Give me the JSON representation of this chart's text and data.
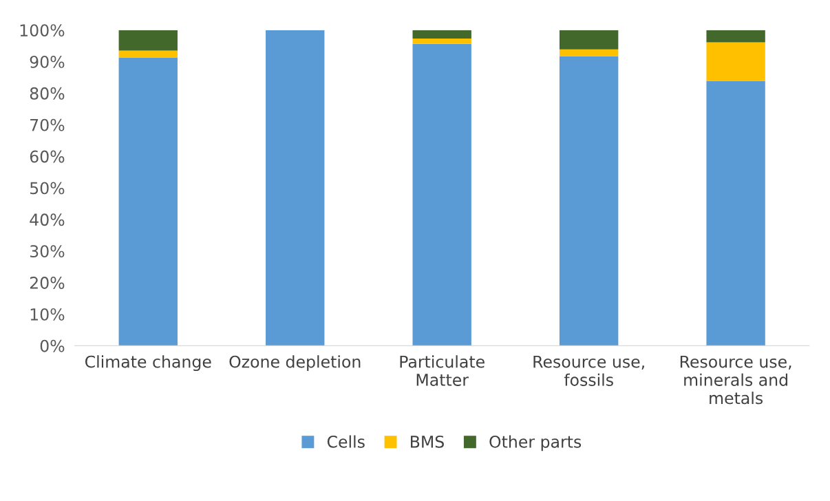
{
  "chart_data": {
    "type": "bar",
    "stacked": true,
    "categories": [
      "Climate change",
      "Ozone depletion",
      "Particulate\nMatter",
      "Resource use,\nfossils",
      "Resource use,\nminerals and\nmetals"
    ],
    "series": [
      {
        "name": "Cells",
        "color": "#5b9bd5",
        "values": [
          91.3,
          100,
          95.6,
          91.7,
          83.9
        ]
      },
      {
        "name": "BMS",
        "color": "#ffc000",
        "values": [
          2.2,
          0,
          1.7,
          2.2,
          12.2
        ]
      },
      {
        "name": "Other parts",
        "color": "#43682b",
        "values": [
          6.5,
          0,
          2.7,
          6.1,
          3.9
        ]
      }
    ],
    "ylim": [
      0,
      100
    ],
    "yticks": [
      {
        "value": 0,
        "label": "0%"
      },
      {
        "value": 10,
        "label": "10%"
      },
      {
        "value": 20,
        "label": "20%"
      },
      {
        "value": 30,
        "label": "30%"
      },
      {
        "value": 40,
        "label": "40%"
      },
      {
        "value": 50,
        "label": "50%"
      },
      {
        "value": 60,
        "label": "60%"
      },
      {
        "value": 70,
        "label": "70%"
      },
      {
        "value": 80,
        "label": "80%"
      },
      {
        "value": 90,
        "label": "90%"
      },
      {
        "value": 100,
        "label": "100%"
      }
    ],
    "grid": false,
    "legend": "bottom"
  }
}
